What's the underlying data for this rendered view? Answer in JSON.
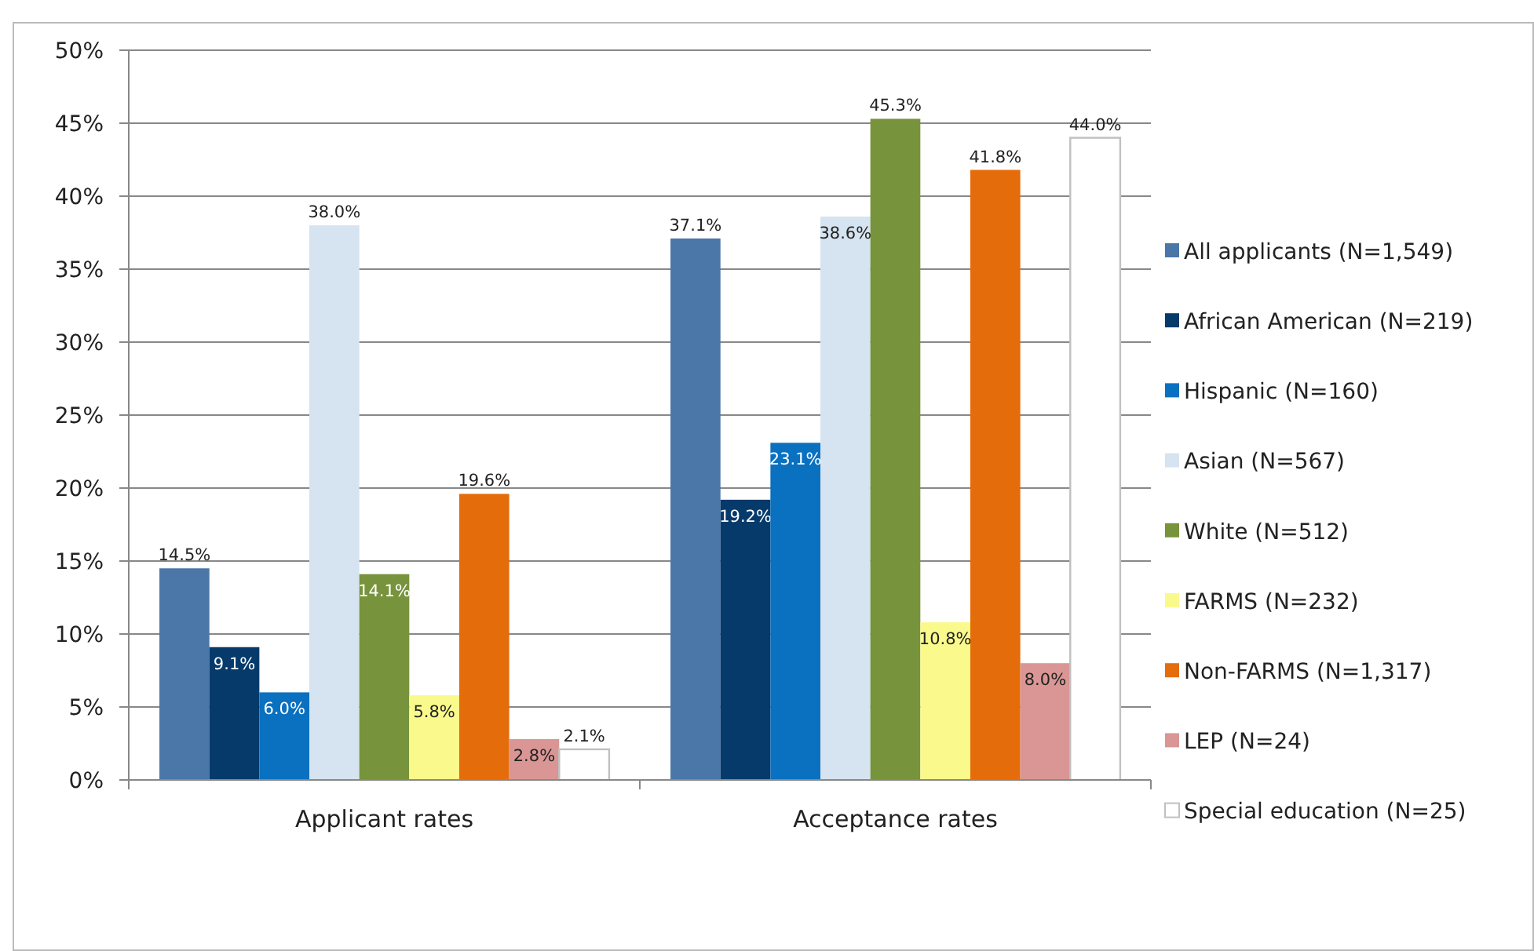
{
  "chart_data": {
    "type": "bar",
    "categories": [
      "Applicant rates",
      "Acceptance rates"
    ],
    "series": [
      {
        "name": "All applicants (N=1,549)",
        "color": "#4a76a8",
        "values": [
          14.5,
          37.1
        ],
        "value_labels": [
          "14.5%",
          "37.1%"
        ]
      },
      {
        "name": "African American (N=219)",
        "color": "#053a6b",
        "values": [
          9.1,
          19.2
        ],
        "value_labels": [
          "9.1%",
          "19.2%"
        ]
      },
      {
        "name": "Hispanic (N=160)",
        "color": "#0a70c0",
        "values": [
          6.0,
          23.1
        ],
        "value_labels": [
          "6.0%",
          "23.1%"
        ]
      },
      {
        "name": "Asian (N=567)",
        "color": "#d6e3f0",
        "values": [
          38.0,
          38.6
        ],
        "value_labels": [
          "38.0%",
          "38.6%"
        ]
      },
      {
        "name": "White (N=512)",
        "color": "#77933c",
        "values": [
          14.1,
          45.3
        ],
        "value_labels": [
          "14.1%",
          "45.3%"
        ]
      },
      {
        "name": "FARMS (N=232)",
        "color": "#fafa8c",
        "values": [
          5.8,
          10.8
        ],
        "value_labels": [
          "5.8%",
          "10.8%"
        ]
      },
      {
        "name": "Non-FARMS (N=1,317)",
        "color": "#e46c0a",
        "values": [
          19.6,
          41.8
        ],
        "value_labels": [
          "19.6%",
          "41.8%"
        ]
      },
      {
        "name": "LEP (N=24)",
        "color": "#d99694",
        "values": [
          2.8,
          8.0
        ],
        "value_labels": [
          "2.8%",
          "8.0%"
        ]
      },
      {
        "name": "Special education (N=25)",
        "color": "#ffffff",
        "values": [
          2.1,
          44.0
        ],
        "value_labels": [
          "2.1%",
          "44.0%"
        ]
      }
    ],
    "ylim": [
      0,
      50
    ],
    "yticks": [
      {
        "value": 0,
        "label": "0%"
      },
      {
        "value": 5,
        "label": "5%"
      },
      {
        "value": 10,
        "label": "10%"
      },
      {
        "value": 15,
        "label": "15%"
      },
      {
        "value": 20,
        "label": "20%"
      },
      {
        "value": 25,
        "label": "25%"
      },
      {
        "value": 30,
        "label": "30%"
      },
      {
        "value": 35,
        "label": "35%"
      },
      {
        "value": 40,
        "label": "40%"
      },
      {
        "value": 45,
        "label": "45%"
      },
      {
        "value": 50,
        "label": "50%"
      }
    ],
    "grid": "y",
    "legend": "right"
  }
}
